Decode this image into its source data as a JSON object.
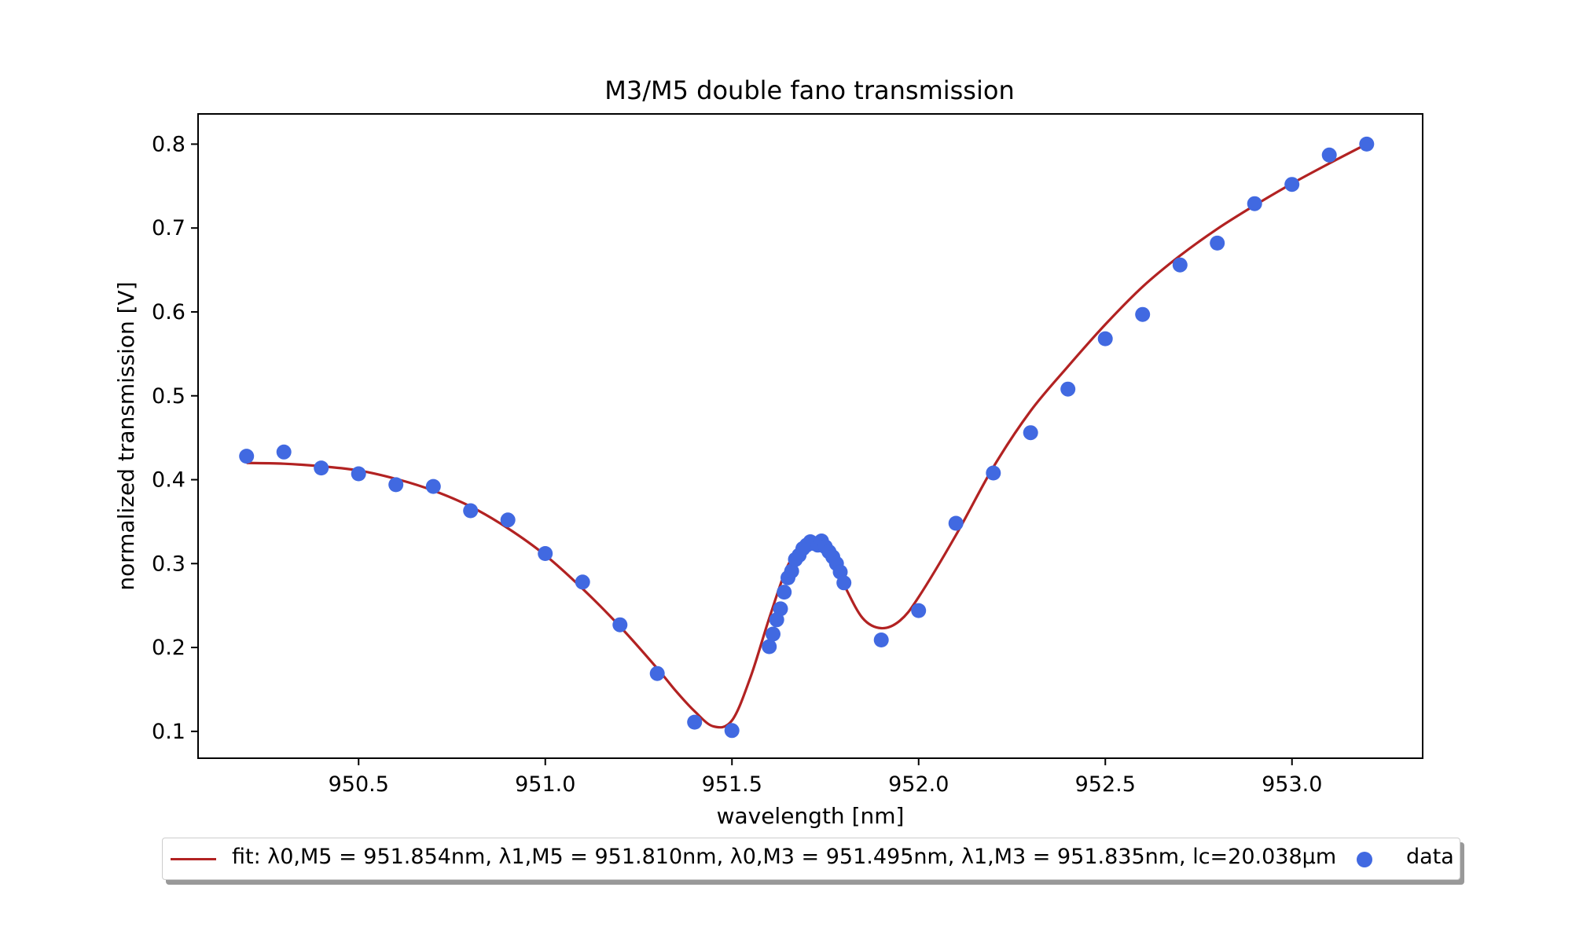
{
  "chart_data": {
    "type": "scatter",
    "title": "M3/M5 double fano transmission",
    "xlabel": "wavelength [nm]",
    "ylabel": "normalized transmission [V]",
    "xlim": [
      950.07,
      953.35
    ],
    "ylim": [
      0.068,
      0.836
    ],
    "xticks": [
      950.5,
      951.0,
      951.5,
      952.0,
      952.5,
      953.0
    ],
    "xtick_labels": [
      "950.5",
      "951.0",
      "951.5",
      "952.0",
      "952.5",
      "953.0"
    ],
    "yticks": [
      0.1,
      0.2,
      0.3,
      0.4,
      0.5,
      0.6,
      0.7,
      0.8
    ],
    "ytick_labels": [
      "0.1",
      "0.2",
      "0.3",
      "0.4",
      "0.5",
      "0.6",
      "0.7",
      "0.8"
    ],
    "grid": false,
    "legend_position": "below",
    "series": [
      {
        "name": "data",
        "kind": "scatter",
        "color": "#4169e1",
        "x": [
          950.2,
          950.3,
          950.4,
          950.5,
          950.6,
          950.7,
          950.8,
          950.9,
          951.0,
          951.1,
          951.2,
          951.3,
          951.4,
          951.5,
          951.6,
          951.61,
          951.62,
          951.63,
          951.64,
          951.65,
          951.66,
          951.67,
          951.68,
          951.69,
          951.7,
          951.71,
          951.72,
          951.73,
          951.74,
          951.75,
          951.76,
          951.77,
          951.78,
          951.79,
          951.8,
          951.9,
          952.0,
          952.1,
          952.2,
          952.3,
          952.4,
          952.5,
          952.6,
          952.7,
          952.8,
          952.9,
          953.0,
          953.1,
          953.2
        ],
        "y": [
          0.428,
          0.433,
          0.414,
          0.407,
          0.394,
          0.392,
          0.363,
          0.352,
          0.312,
          0.278,
          0.227,
          0.169,
          0.111,
          0.101,
          0.201,
          0.216,
          0.233,
          0.246,
          0.266,
          0.283,
          0.291,
          0.305,
          0.31,
          0.318,
          0.322,
          0.326,
          0.324,
          0.322,
          0.327,
          0.32,
          0.314,
          0.308,
          0.3,
          0.29,
          0.277,
          0.209,
          0.244,
          0.348,
          0.408,
          0.456,
          0.508,
          0.568,
          0.597,
          0.656,
          0.682,
          0.729,
          0.752,
          0.787,
          0.8
        ]
      },
      {
        "name": "fit",
        "kind": "line",
        "color": "#b22222",
        "x": [
          950.2,
          950.3,
          950.4,
          950.5,
          950.6,
          950.7,
          950.8,
          950.9,
          951.0,
          951.1,
          951.2,
          951.3,
          951.35,
          951.4,
          951.45,
          951.5,
          951.55,
          951.6,
          951.65,
          951.7,
          951.73,
          951.76,
          951.8,
          951.85,
          951.9,
          951.95,
          952.0,
          952.1,
          952.2,
          952.3,
          952.4,
          952.5,
          952.6,
          952.7,
          952.8,
          952.9,
          953.0,
          953.1,
          953.2
        ],
        "y": [
          0.42,
          0.419,
          0.416,
          0.411,
          0.401,
          0.387,
          0.368,
          0.342,
          0.31,
          0.27,
          0.225,
          0.175,
          0.148,
          0.124,
          0.106,
          0.113,
          0.165,
          0.235,
          0.298,
          0.328,
          0.329,
          0.313,
          0.275,
          0.235,
          0.223,
          0.232,
          0.26,
          0.334,
          0.415,
          0.482,
          0.535,
          0.585,
          0.63,
          0.667,
          0.699,
          0.727,
          0.753,
          0.777,
          0.8
        ]
      }
    ]
  },
  "legend": {
    "fit_label": "fit: λ0,M5 = 951.854nm, λ1,M5 = 951.810nm, λ0,M3 = 951.495nm, λ1,M3 = 951.835nm, lc=20.038µm",
    "data_label": "data"
  }
}
